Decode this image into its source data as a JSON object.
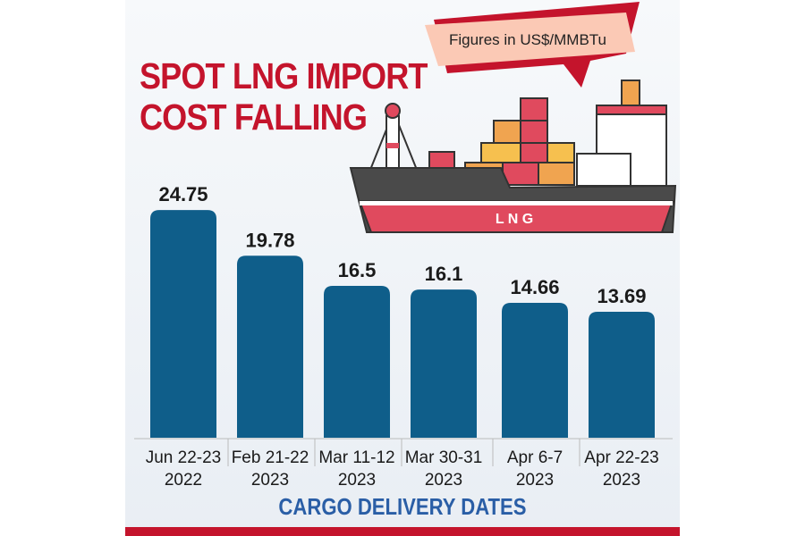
{
  "title_lines": [
    "SPOT LNG IMPORT",
    "COST FALLING"
  ],
  "unit_note": "Figures in US$/MMBTu",
  "ship_label": "L N G",
  "colors": {
    "bar": "#0f5e8a",
    "title": "#c4142c",
    "axis_title": "#2a5ea6",
    "callout": "#fbc9b5",
    "callout_back": "#c4142c"
  },
  "chart_data": {
    "type": "bar",
    "title": "SPOT LNG IMPORT COST FALLING",
    "xlabel": "CARGO DELIVERY DATES",
    "ylabel": "",
    "unit": "US$/MMBTu",
    "categories": [
      [
        "Jun 22-23",
        "2022"
      ],
      [
        "Feb 21-22",
        "2023"
      ],
      [
        "Mar 11-12",
        "2023"
      ],
      [
        "Mar 30-31",
        "2023"
      ],
      [
        "Apr 6-7",
        "2023"
      ],
      [
        "Apr 22-23",
        "2023"
      ]
    ],
    "values": [
      24.75,
      19.78,
      16.5,
      16.1,
      14.66,
      13.69
    ],
    "value_labels": [
      "24.75",
      "19.78",
      "16.5",
      "16.1",
      "14.66",
      "13.69"
    ],
    "ylim": [
      0,
      25
    ],
    "grid": false
  }
}
